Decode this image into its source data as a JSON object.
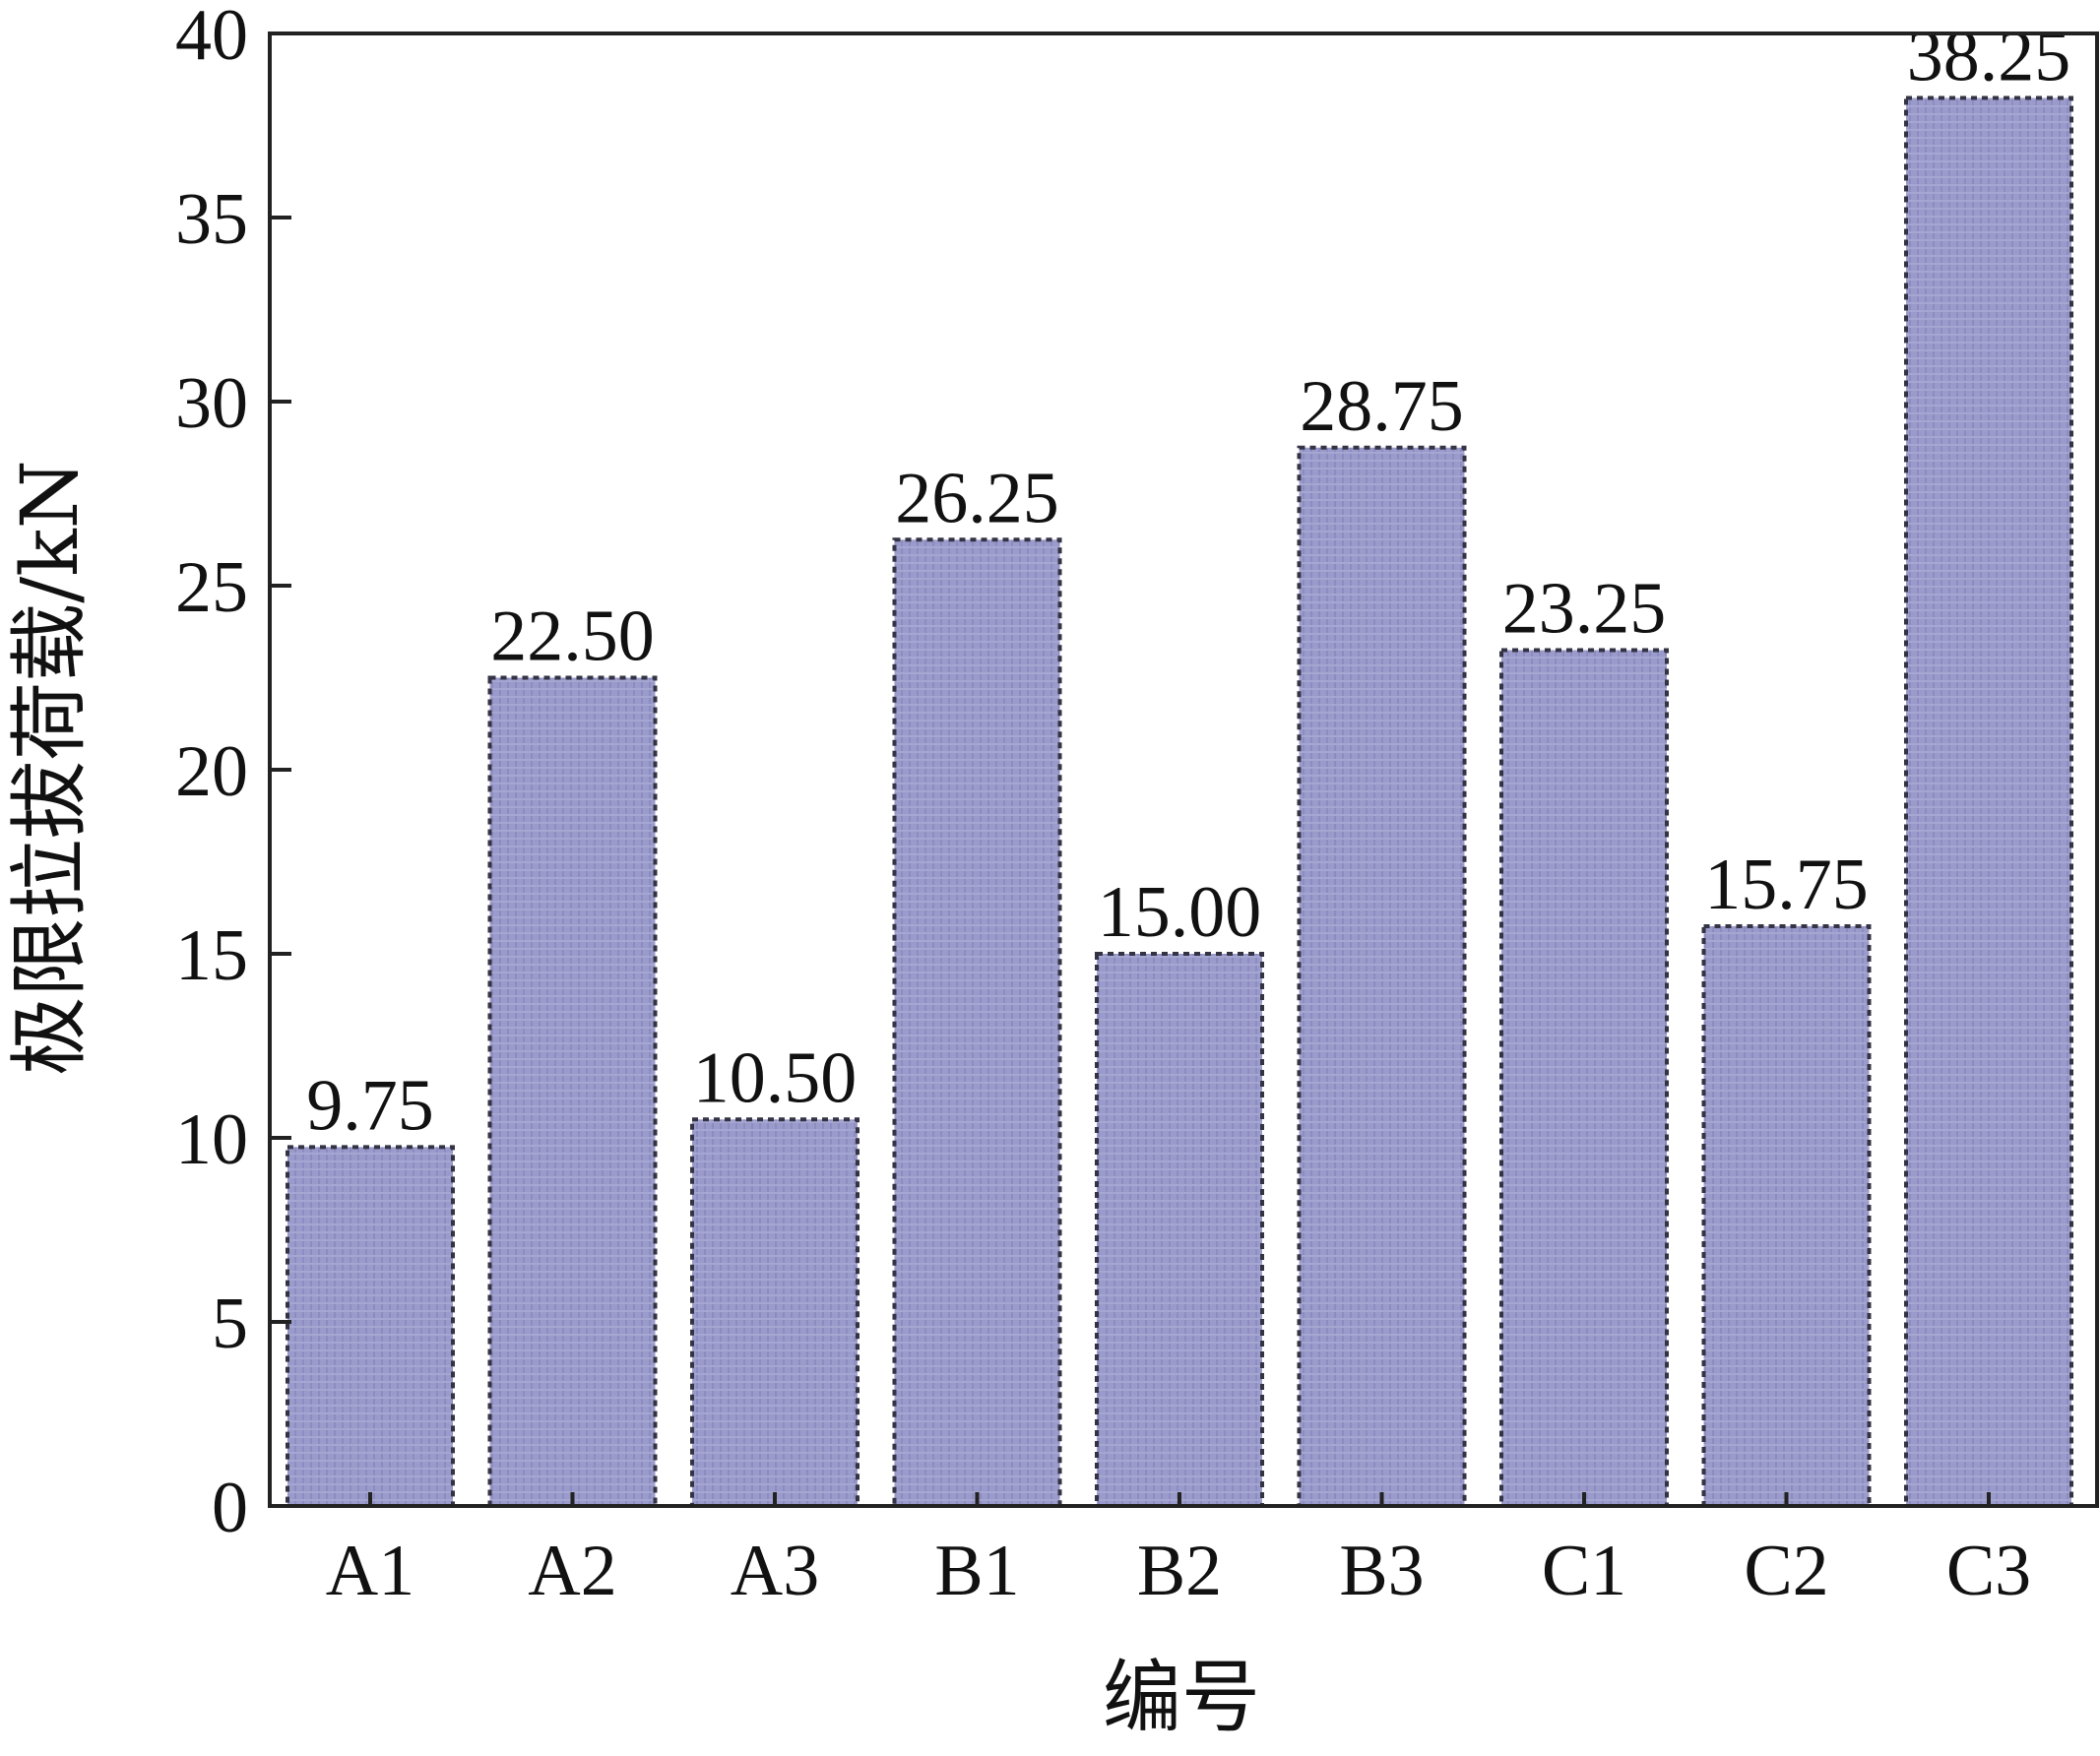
{
  "chart_data": {
    "type": "bar",
    "categories": [
      "A1",
      "A2",
      "A3",
      "B1",
      "B2",
      "B3",
      "C1",
      "C2",
      "C3"
    ],
    "values": [
      9.75,
      22.5,
      10.5,
      26.25,
      15.0,
      28.75,
      23.25,
      15.75,
      38.25
    ],
    "value_labels": [
      "9.75",
      "22.50",
      "10.50",
      "26.25",
      "15.00",
      "28.75",
      "23.25",
      "15.75",
      "38.25"
    ],
    "xlabel": "编号",
    "ylabel": "极限拉拔荷载/kN",
    "ylim": [
      0,
      40
    ],
    "yticks": [
      "0",
      "5",
      "10",
      "15",
      "20",
      "25",
      "30",
      "35",
      "40"
    ],
    "grid": false,
    "colors": {
      "bar": "#9b9bcb",
      "bar_pattern": "#8a8ac0",
      "axis": "#222222"
    }
  }
}
